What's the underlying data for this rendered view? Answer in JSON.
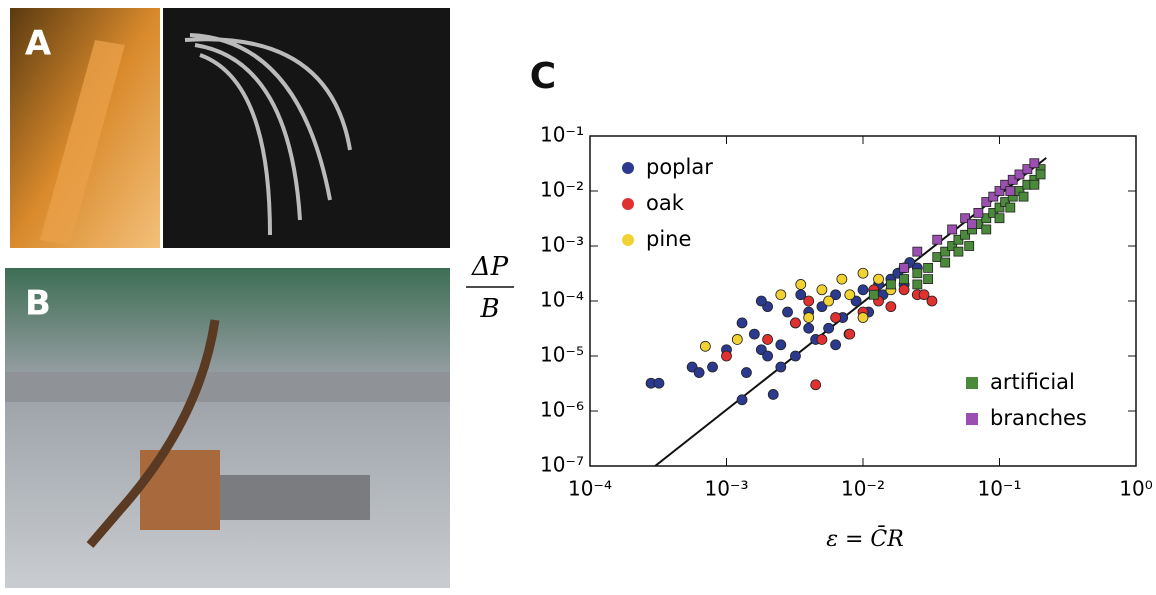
{
  "panel_labels": [
    "A",
    "B",
    "C"
  ],
  "chart_data": {
    "type": "scatter",
    "xlabel": "ε = C̄R",
    "ylabel_numerator": "ΔP",
    "ylabel_denominator": "B",
    "log_x": true,
    "log_y": true,
    "xlim": [
      0.0001,
      1
    ],
    "ylim": [
      1e-07,
      0.1
    ],
    "xticks": [
      {
        "value": 0.0001,
        "label": "10⁻⁴"
      },
      {
        "value": 0.001,
        "label": "10⁻³"
      },
      {
        "value": 0.01,
        "label": "10⁻²"
      },
      {
        "value": 0.1,
        "label": "10⁻¹"
      },
      {
        "value": 1,
        "label": "10⁰"
      }
    ],
    "yticks": [
      {
        "value": 1e-07,
        "label": "10⁻⁷"
      },
      {
        "value": 1e-06,
        "label": "10⁻⁶"
      },
      {
        "value": 1e-05,
        "label": "10⁻⁵"
      },
      {
        "value": 0.0001,
        "label": "10⁻⁴"
      },
      {
        "value": 0.001,
        "label": "10⁻³"
      },
      {
        "value": 0.01,
        "label": "10⁻²"
      },
      {
        "value": 0.1,
        "label": "10⁻¹"
      }
    ],
    "fit_line": {
      "color": "#111111",
      "x": [
        0.0003,
        0.22
      ],
      "values": [
        1e-07,
        0.04
      ]
    },
    "series": [
      {
        "name": "poplar",
        "color": "#2b3a8f",
        "marker": "circle",
        "legend_loc": "upper left",
        "x": [
          0.00028,
          0.00032,
          0.00056,
          0.00063,
          0.00079,
          0.001,
          0.0013,
          0.0016,
          0.0018,
          0.002,
          0.0025,
          0.0028,
          0.0032,
          0.0035,
          0.004,
          0.0045,
          0.005,
          0.0056,
          0.0063,
          0.0071,
          0.0079,
          0.0089,
          0.01,
          0.011,
          0.013,
          0.014,
          0.016,
          0.018,
          0.02,
          0.022,
          0.025,
          0.0022,
          0.0014,
          0.0013,
          0.002,
          0.0025,
          0.0032,
          0.004,
          0.0063,
          0.0018
        ],
        "values": [
          3.2e-06,
          3.2e-06,
          6.3e-06,
          5e-06,
          6.3e-06,
          1.3e-05,
          1.6e-06,
          2.5e-05,
          1.3e-05,
          1e-05,
          1.6e-05,
          6.3e-05,
          4e-05,
          0.00013,
          3.2e-05,
          2e-05,
          7.9e-05,
          3.2e-05,
          0.00013,
          5e-05,
          2.5e-05,
          0.0001,
          0.00016,
          6.3e-05,
          0.0002,
          0.00013,
          0.00025,
          0.00032,
          0.0002,
          0.0005,
          0.0004,
          2e-06,
          5e-06,
          4e-05,
          7.9e-05,
          6.3e-06,
          1e-05,
          6.3e-05,
          1.6e-05,
          0.0001
        ]
      },
      {
        "name": "oak",
        "color": "#e0302f",
        "marker": "circle",
        "legend_loc": "upper left",
        "x": [
          0.001,
          0.002,
          0.0032,
          0.0045,
          0.005,
          0.0063,
          0.008,
          0.01,
          0.013,
          0.016,
          0.02,
          0.025,
          0.032,
          0.028,
          0.004,
          0.012
        ],
        "values": [
          1e-05,
          2e-05,
          4e-05,
          3e-06,
          2e-05,
          5e-05,
          2.5e-05,
          6.3e-05,
          0.0001,
          7.9e-05,
          0.00016,
          0.00013,
          0.0001,
          0.00013,
          0.0001,
          0.00016
        ]
      },
      {
        "name": "pine",
        "color": "#f2d232",
        "marker": "circle",
        "legend_loc": "upper left",
        "x": [
          0.0007,
          0.0012,
          0.0025,
          0.0035,
          0.004,
          0.0056,
          0.007,
          0.008,
          0.01,
          0.013,
          0.016,
          0.02,
          0.01,
          0.005
        ],
        "values": [
          1.5e-05,
          2e-05,
          0.00013,
          0.0002,
          5e-05,
          0.0001,
          0.00025,
          0.00013,
          5e-05,
          0.00025,
          0.00016,
          0.0004,
          0.00032,
          0.00016
        ]
      },
      {
        "name": "artificial",
        "color": "#4a8a3a",
        "marker": "square",
        "legend_loc": "lower right",
        "x": [
          0.012,
          0.016,
          0.02,
          0.025,
          0.03,
          0.035,
          0.04,
          0.045,
          0.05,
          0.056,
          0.063,
          0.07,
          0.08,
          0.09,
          0.1,
          0.11,
          0.125,
          0.14,
          0.16,
          0.18,
          0.2,
          0.2,
          0.03,
          0.04,
          0.06,
          0.08,
          0.1,
          0.12,
          0.15,
          0.18,
          0.025,
          0.05
        ],
        "values": [
          0.00013,
          0.0002,
          0.00025,
          0.00032,
          0.0004,
          0.00063,
          0.00079,
          0.001,
          0.0013,
          0.0016,
          0.002,
          0.0025,
          0.0032,
          0.004,
          0.005,
          0.0063,
          0.0079,
          0.01,
          0.013,
          0.016,
          0.025,
          0.02,
          0.00025,
          0.0005,
          0.001,
          0.002,
          0.0032,
          0.005,
          0.0079,
          0.013,
          0.0002,
          0.00079
        ]
      },
      {
        "name": "branches",
        "color": "#9b4fb0",
        "marker": "square",
        "legend_loc": "lower right",
        "x": [
          0.02,
          0.025,
          0.035,
          0.045,
          0.056,
          0.07,
          0.08,
          0.09,
          0.1,
          0.11,
          0.125,
          0.14,
          0.16,
          0.18,
          0.063,
          0.12
        ],
        "values": [
          0.0004,
          0.00079,
          0.0013,
          0.002,
          0.0032,
          0.004,
          0.0063,
          0.0079,
          0.01,
          0.013,
          0.016,
          0.02,
          0.025,
          0.032,
          0.0025,
          0.01
        ]
      }
    ]
  }
}
